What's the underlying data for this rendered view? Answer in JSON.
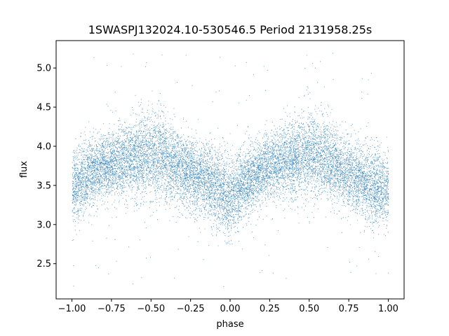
{
  "chart_data": {
    "type": "scatter",
    "title": "1SWASPJ132024.10-530546.5 Period 2131958.25s",
    "xlabel": "phase",
    "ylabel": "flux",
    "xlim": [
      -1.1,
      1.1
    ],
    "ylim": [
      2.05,
      5.35
    ],
    "x_ticks": [
      -1.0,
      -0.75,
      -0.5,
      -0.25,
      0.0,
      0.25,
      0.5,
      0.75,
      1.0
    ],
    "x_tick_labels": [
      "−1.00",
      "−0.75",
      "−0.50",
      "−0.25",
      "0.00",
      "0.25",
      "0.50",
      "0.75",
      "1.00"
    ],
    "y_ticks": [
      2.5,
      3.0,
      3.5,
      4.0,
      4.5,
      5.0
    ],
    "y_tick_labels": [
      "2.5",
      "3.0",
      "3.5",
      "4.0",
      "4.5",
      "5.0"
    ],
    "grid": false,
    "legend": "none",
    "marker_color": "#1f77b4",
    "series_profile": {
      "phase": [
        -1.0,
        -0.9,
        -0.8,
        -0.7,
        -0.6,
        -0.5,
        -0.4,
        -0.3,
        -0.2,
        -0.1,
        0.0,
        0.1,
        0.2,
        0.3,
        0.4,
        0.5,
        0.6,
        0.7,
        0.8,
        0.9,
        1.0
      ],
      "median_flux": [
        3.45,
        3.65,
        3.75,
        3.8,
        3.85,
        3.9,
        3.85,
        3.7,
        3.6,
        3.5,
        3.35,
        3.55,
        3.7,
        3.8,
        3.85,
        3.9,
        3.85,
        3.7,
        3.6,
        3.5,
        3.45
      ],
      "scatter": [
        0.25,
        0.22,
        0.2,
        0.22,
        0.25,
        0.28,
        0.25,
        0.22,
        0.22,
        0.24,
        0.25,
        0.22,
        0.2,
        0.22,
        0.25,
        0.28,
        0.25,
        0.22,
        0.22,
        0.24,
        0.25
      ]
    },
    "point_count": 14000,
    "outlier_fraction": 0.012,
    "flux_min": 2.2,
    "flux_max": 5.2
  }
}
